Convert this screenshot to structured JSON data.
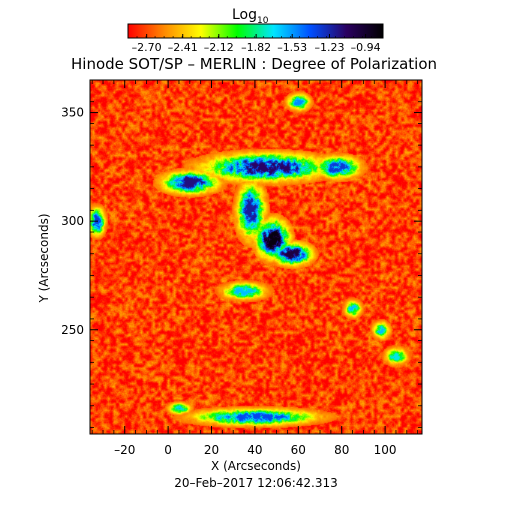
{
  "chart_data": {
    "type": "heatmap",
    "title": "Hinode SOT/SP – MERLIN : Degree of Polarization",
    "xlabel": "X (Arcseconds)",
    "ylabel": "Y (Arcseconds)",
    "timestamp": "20–Feb–2017 12:06:42.313",
    "xlim": [
      -36,
      117
    ],
    "ylim": [
      202,
      365
    ],
    "x_ticks": [
      -20,
      0,
      20,
      40,
      60,
      80,
      100
    ],
    "y_ticks": [
      250,
      300,
      350
    ],
    "colorbar": {
      "title_base": "Log",
      "title_sub": "10",
      "range": [
        -2.85,
        -0.8
      ],
      "tick_values": [
        -2.7,
        -2.41,
        -2.12,
        -1.82,
        -1.53,
        -1.23,
        -0.94
      ],
      "tick_labels": [
        "–2.70",
        "–2.41",
        "–2.12",
        "–1.82",
        "–1.53",
        "–1.23",
        "–0.94"
      ],
      "colors": [
        "#ff0000",
        "#ff8a00",
        "#ffff00",
        "#00ff00",
        "#00e5ff",
        "#0050ff",
        "#2a0060",
        "#000000"
      ]
    },
    "background_level": -2.7,
    "background_noise": 0.18,
    "features": [
      {
        "x": 45,
        "y": 325,
        "sx": 22,
        "sy": 5,
        "peak": -1.1
      },
      {
        "x": 10,
        "y": 318,
        "sx": 10,
        "sy": 4,
        "peak": -1.15
      },
      {
        "x": 78,
        "y": 325,
        "sx": 8,
        "sy": 4,
        "peak": -1.3
      },
      {
        "x": 48,
        "y": 292,
        "sx": 6,
        "sy": 7,
        "peak": -0.85
      },
      {
        "x": 57,
        "y": 285,
        "sx": 7,
        "sy": 4,
        "peak": -1.0
      },
      {
        "x": 38,
        "y": 305,
        "sx": 5,
        "sy": 10,
        "peak": -1.2
      },
      {
        "x": 60,
        "y": 355,
        "sx": 4,
        "sy": 3,
        "peak": -1.5
      },
      {
        "x": 35,
        "y": 268,
        "sx": 8,
        "sy": 3,
        "peak": -1.6
      },
      {
        "x": -33,
        "y": 300,
        "sx": 3,
        "sy": 5,
        "peak": -1.3
      },
      {
        "x": 40,
        "y": 210,
        "sx": 22,
        "sy": 3,
        "peak": -1.35
      },
      {
        "x": 5,
        "y": 214,
        "sx": 4,
        "sy": 2,
        "peak": -1.5
      },
      {
        "x": 98,
        "y": 250,
        "sx": 3,
        "sy": 3,
        "peak": -1.6
      },
      {
        "x": 85,
        "y": 260,
        "sx": 3,
        "sy": 3,
        "peak": -1.6
      },
      {
        "x": 105,
        "y": 238,
        "sx": 4,
        "sy": 3,
        "peak": -1.7
      }
    ]
  }
}
